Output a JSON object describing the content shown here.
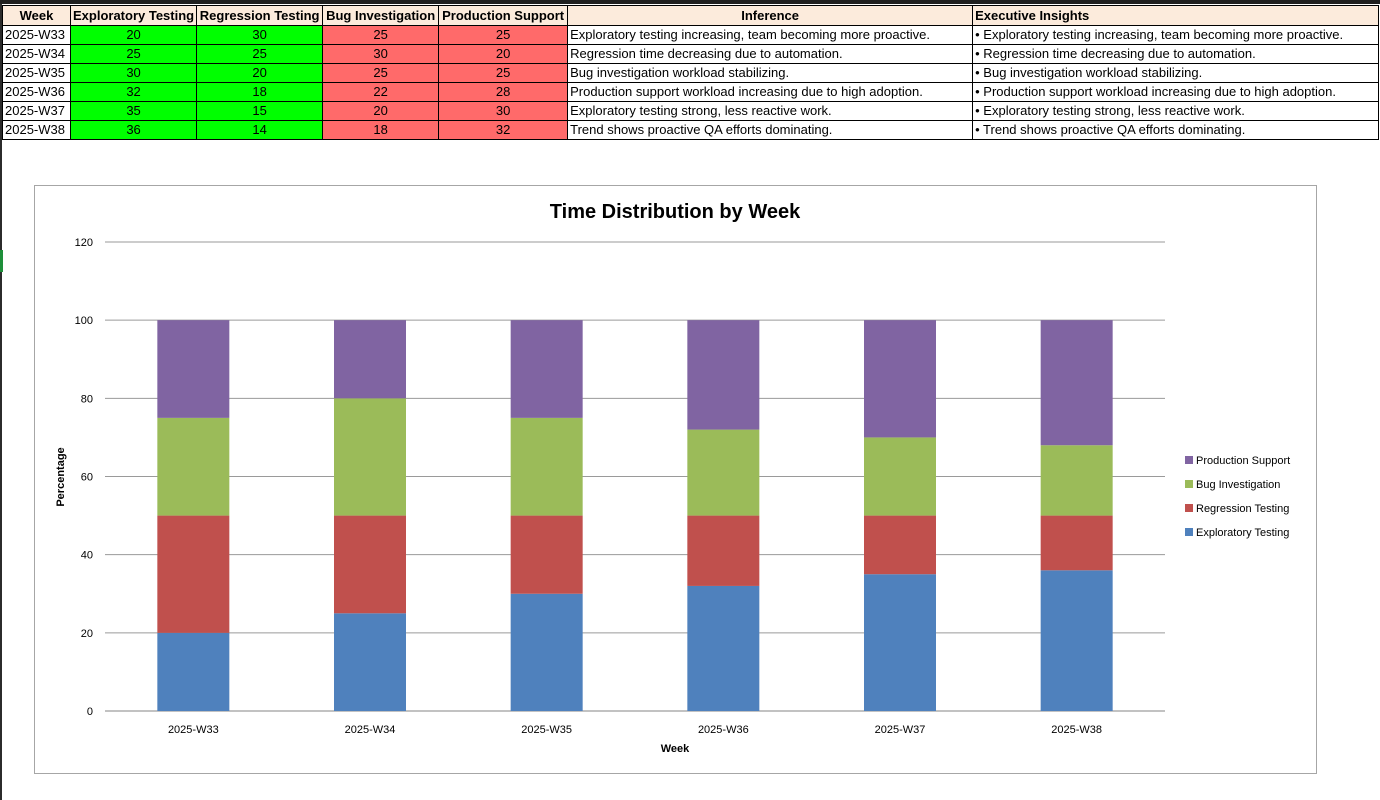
{
  "table": {
    "headers": [
      "Week",
      "Exploratory Testing",
      "Regression Testing",
      "Bug Investigation",
      "Production Support",
      "Inference",
      "Executive Insights"
    ],
    "rows": [
      {
        "week": "2025-W33",
        "exploratory": "20",
        "regression": "30",
        "bug": "25",
        "production": "25",
        "inference": "Exploratory testing increasing, team becoming more proactive.",
        "insight": "• Exploratory testing increasing, team becoming more proactive."
      },
      {
        "week": "2025-W34",
        "exploratory": "25",
        "regression": "25",
        "bug": "30",
        "production": "20",
        "inference": "Regression time decreasing due to automation.",
        "insight": "• Regression time decreasing due to automation."
      },
      {
        "week": "2025-W35",
        "exploratory": "30",
        "regression": "20",
        "bug": "25",
        "production": "25",
        "inference": "Bug investigation workload stabilizing.",
        "insight": "• Bug investigation workload stabilizing."
      },
      {
        "week": "2025-W36",
        "exploratory": "32",
        "regression": "18",
        "bug": "22",
        "production": "28",
        "inference": "Production support workload increasing due to high adoption.",
        "insight": "• Production support workload increasing due to high adoption."
      },
      {
        "week": "2025-W37",
        "exploratory": "35",
        "regression": "15",
        "bug": "20",
        "production": "30",
        "inference": "Exploratory testing strong, less reactive work.",
        "insight": "• Exploratory testing strong, less reactive work."
      },
      {
        "week": "2025-W38",
        "exploratory": "36",
        "regression": "14",
        "bug": "18",
        "production": "32",
        "inference": "Trend shows proactive QA efforts dominating.",
        "insight": "• Trend shows proactive QA efforts dominating."
      }
    ]
  },
  "colors": {
    "good": "#00ff00",
    "bad": "#ff6a6a",
    "header": "#fcebdc"
  },
  "chart_data": {
    "type": "bar",
    "stacked": true,
    "title": "Time Distribution by Week",
    "xlabel": "Week",
    "ylabel": "Percentage",
    "ylim": [
      0,
      120
    ],
    "yticks": [
      "0",
      "20",
      "40",
      "60",
      "80",
      "100",
      "120"
    ],
    "categories": [
      "2025-W33",
      "2025-W34",
      "2025-W35",
      "2025-W36",
      "2025-W37",
      "2025-W38"
    ],
    "series": [
      {
        "name": "Exploratory Testing",
        "values": [
          20,
          25,
          30,
          32,
          35,
          36
        ],
        "color": "#4f81bd"
      },
      {
        "name": "Regression Testing",
        "values": [
          30,
          25,
          20,
          18,
          15,
          14
        ],
        "color": "#c0504d"
      },
      {
        "name": "Bug Investigation",
        "values": [
          25,
          30,
          25,
          22,
          20,
          18
        ],
        "color": "#9bbb59"
      },
      {
        "name": "Production Support",
        "values": [
          25,
          20,
          25,
          28,
          30,
          32
        ],
        "color": "#8064a2"
      }
    ],
    "grid": true,
    "legend_position": "right"
  }
}
